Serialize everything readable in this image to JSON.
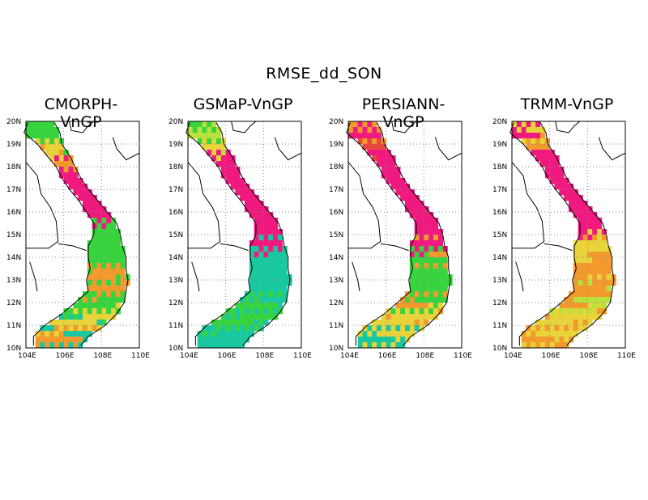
{
  "title": "RMSE_dd_SON",
  "colors": {
    "magenta": "#f0197f",
    "red": "#e8473a",
    "orange": "#f29a2e",
    "yellow": "#e8d33a",
    "yellowgreen": "#b7e23d",
    "green": "#38d43f",
    "teal": "#19c8a0"
  },
  "axes": {
    "x_ticks": [
      "104E",
      "106E",
      "108E",
      "110E"
    ],
    "y_ticks": [
      "10N",
      "11N",
      "12N",
      "13N",
      "14N",
      "15N",
      "16N",
      "17N",
      "18N",
      "19N",
      "20N"
    ],
    "lon_range": [
      104,
      110
    ],
    "lat_range": [
      10,
      20
    ]
  },
  "panels": [
    {
      "title": "CMORPH-VnGP",
      "profile": [
        "green",
        "green",
        "yellow",
        "orange",
        "magenta",
        "magenta",
        "magenta",
        "magenta",
        "magenta",
        "green",
        "green",
        "green",
        "green",
        "orange",
        "orange",
        "green",
        "green",
        "yellow",
        "teal",
        "orange"
      ]
    },
    {
      "title": "GSMaP-VnGP",
      "profile": [
        "green",
        "yellowgreen",
        "yellow",
        "magenta",
        "magenta",
        "magenta",
        "magenta",
        "magenta",
        "magenta",
        "magenta",
        "magenta",
        "teal",
        "teal",
        "teal",
        "teal",
        "teal",
        "green",
        "green",
        "teal",
        "teal"
      ]
    },
    {
      "title": "PERSIANN-VnGP",
      "profile": [
        "orange",
        "magenta",
        "red",
        "magenta",
        "magenta",
        "magenta",
        "magenta",
        "magenta",
        "magenta",
        "magenta",
        "magenta",
        "orange",
        "green",
        "green",
        "green",
        "green",
        "orange",
        "yellow",
        "yellow",
        "teal"
      ]
    },
    {
      "title": "TRMM-VnGP",
      "profile": [
        "yellow",
        "magenta",
        "orange",
        "magenta",
        "magenta",
        "magenta",
        "magenta",
        "magenta",
        "magenta",
        "magenta",
        "yellow",
        "orange",
        "yellow",
        "orange",
        "orange",
        "yellowgreen",
        "orange",
        "yellow",
        "yellow",
        "orange"
      ]
    }
  ]
}
